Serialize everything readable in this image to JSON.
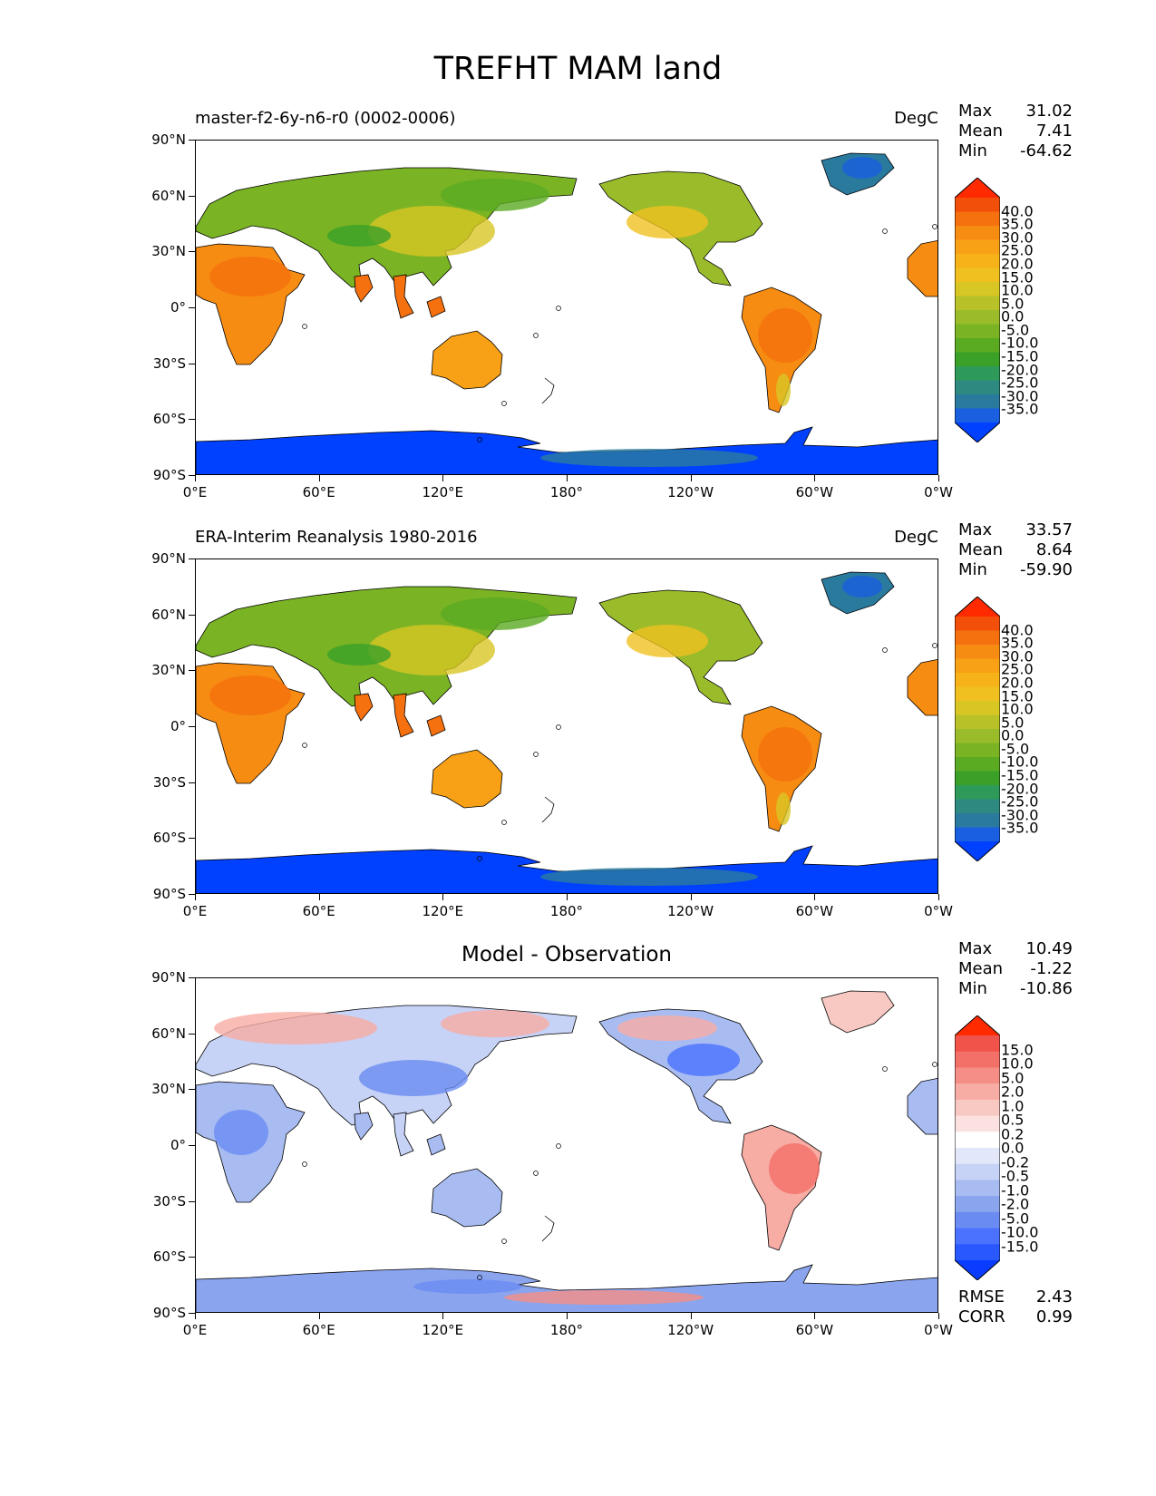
{
  "title": "TREFHT MAM land",
  "axes": {
    "lat_ticks": [
      "90°N",
      "60°N",
      "30°N",
      "0°",
      "30°S",
      "60°S",
      "90°S"
    ],
    "lon_ticks": [
      "0°E",
      "60°E",
      "120°E",
      "180°",
      "120°W",
      "60°W",
      "0°W"
    ]
  },
  "colors": {
    "temp_scale": [
      "#0040ff",
      "#1a5fe0",
      "#2a7a9e",
      "#2e8a80",
      "#2e9a5a",
      "#3aa028",
      "#5aaa22",
      "#7ab424",
      "#9abc2a",
      "#b8c228",
      "#d8c624",
      "#f0c020",
      "#f7b21a",
      "#f8a016",
      "#f78c12",
      "#f5700e",
      "#f24f0a",
      "#ff2a00"
    ],
    "diff_scale": [
      "#0a3cff",
      "#2a58ff",
      "#4a72ff",
      "#6a8cf2",
      "#8aa4ee",
      "#a8bcf2",
      "#c6d2f6",
      "#e2e8fa",
      "#ffffff",
      "#fbe2e0",
      "#f8c8c2",
      "#f7aca4",
      "#f58e86",
      "#f37068",
      "#f1524a",
      "#ff2a00"
    ],
    "land_warm": "#f39a1e",
    "antarctica": "#0040ff"
  },
  "panels": [
    {
      "id": "model",
      "left_title": "master-f2-6y-n6-r0 (0002-0006)",
      "center_title": "",
      "units": "DegC",
      "stats": [
        {
          "label": "Max",
          "value": "31.02"
        },
        {
          "label": "Mean",
          "value": "7.41"
        },
        {
          "label": "Min",
          "value": "-64.62"
        }
      ],
      "colorbar": {
        "scale": "temp",
        "labels": [
          "40.0",
          "35.0",
          "30.0",
          "25.0",
          "20.0",
          "15.0",
          "10.0",
          "5.0",
          "0.0",
          "-5.0",
          "-10.0",
          "-15.0",
          "-20.0",
          "-25.0",
          "-30.0",
          "-35.0"
        ]
      },
      "extra_stats": []
    },
    {
      "id": "obs",
      "left_title": "ERA-Interim Reanalysis 1980-2016",
      "center_title": "",
      "units": "DegC",
      "stats": [
        {
          "label": "Max",
          "value": "33.57"
        },
        {
          "label": "Mean",
          "value": "8.64"
        },
        {
          "label": "Min",
          "value": "-59.90"
        }
      ],
      "colorbar": {
        "scale": "temp",
        "labels": [
          "40.0",
          "35.0",
          "30.0",
          "25.0",
          "20.0",
          "15.0",
          "10.0",
          "5.0",
          "0.0",
          "-5.0",
          "-10.0",
          "-15.0",
          "-20.0",
          "-25.0",
          "-30.0",
          "-35.0"
        ]
      },
      "extra_stats": []
    },
    {
      "id": "diff",
      "left_title": "",
      "center_title": "Model - Observation",
      "units": "",
      "stats": [
        {
          "label": "Max",
          "value": "10.49"
        },
        {
          "label": "Mean",
          "value": "-1.22"
        },
        {
          "label": "Min",
          "value": "-10.86"
        }
      ],
      "colorbar": {
        "scale": "diff",
        "labels": [
          "15.0",
          "10.0",
          "5.0",
          "2.0",
          "1.0",
          "0.5",
          "0.2",
          "0.0",
          "-0.2",
          "-0.5",
          "-1.0",
          "-2.0",
          "-5.0",
          "-10.0",
          "-15.0"
        ]
      },
      "extra_stats": [
        {
          "label": "RMSE",
          "value": "2.43"
        },
        {
          "label": "CORR",
          "value": "0.99"
        }
      ]
    }
  ]
}
